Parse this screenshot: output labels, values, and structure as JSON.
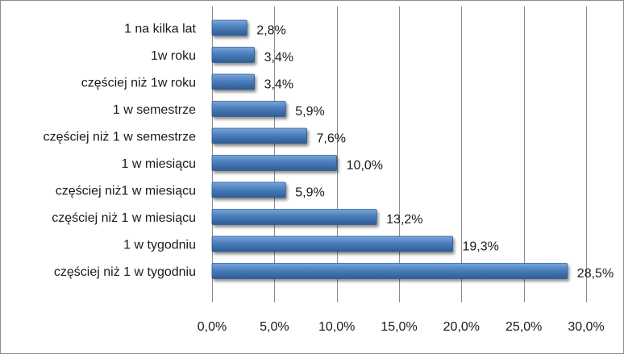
{
  "chart_data": {
    "type": "bar",
    "orientation": "horizontal",
    "categories": [
      "1 na kilka lat",
      "1w roku",
      "częściej niż 1w roku",
      "1 w semestrze",
      "częściej niż 1 w semestrze",
      "1 w miesiącu",
      "częściej niż1 w miesiącu",
      "częściej niż 1 w miesiącu",
      "1 w tygodniu",
      "częściej niż 1 w tygodniu"
    ],
    "values": [
      2.8,
      3.4,
      3.4,
      5.9,
      7.6,
      10.0,
      5.9,
      13.2,
      19.3,
      28.5
    ],
    "value_labels": [
      "2,8%",
      "3,4%",
      "3,4%",
      "5,9%",
      "7,6%",
      "10,0%",
      "5,9%",
      "13,2%",
      "19,3%",
      "28,5%"
    ],
    "xlim": [
      0,
      30
    ],
    "xticks": [
      0,
      5,
      10,
      15,
      20,
      25,
      30
    ],
    "xtick_labels": [
      "0,0%",
      "5,0%",
      "10,0%",
      "15,0%",
      "20,0%",
      "25,0%",
      "30,0%"
    ],
    "title": "",
    "xlabel": "",
    "ylabel": "",
    "grid": "vertical",
    "legend": "none",
    "colors": {
      "bar_fill": "#4a7ebb",
      "bar_light": "#7aa6dc",
      "bar_dark": "#2f5c95",
      "grid": "#8c8c8c"
    }
  }
}
